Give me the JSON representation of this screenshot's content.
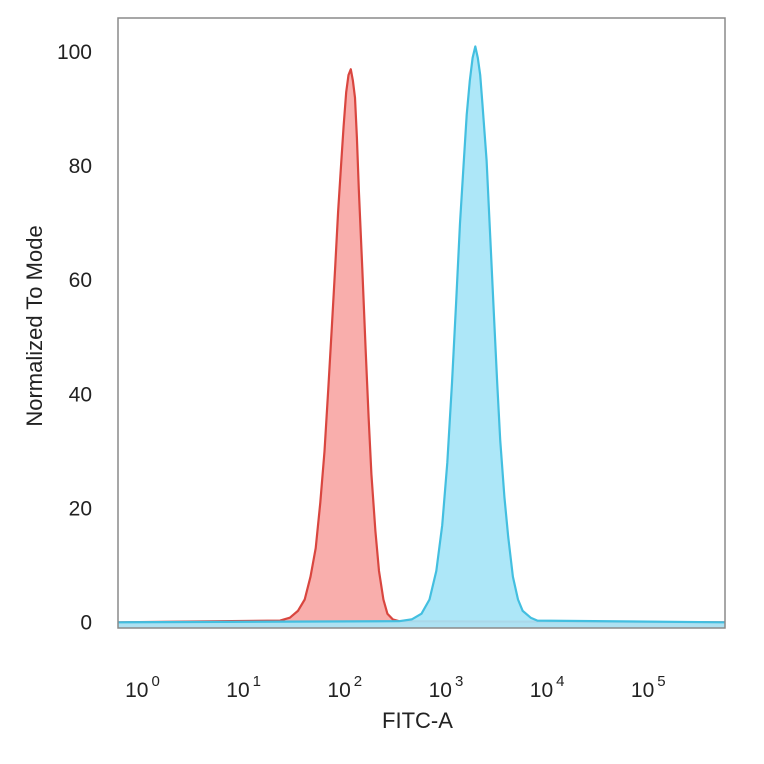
{
  "chart_data": {
    "type": "area",
    "title": "",
    "xlabel": "FITC-A",
    "ylabel": "Normalized To Mode",
    "x_scale": "log",
    "xlim": [
      0.5,
      500000
    ],
    "ylim": [
      -1,
      106
    ],
    "y_ticks": [
      {
        "value": 0,
        "label": "0"
      },
      {
        "value": 20,
        "label": "20"
      },
      {
        "value": 40,
        "label": "40"
      },
      {
        "value": 60,
        "label": "60"
      },
      {
        "value": 80,
        "label": "80"
      },
      {
        "value": 100,
        "label": "100"
      }
    ],
    "x_ticks": [
      {
        "value": 1,
        "base": "10",
        "exp": "0"
      },
      {
        "value": 10,
        "base": "10",
        "exp": "1"
      },
      {
        "value": 100,
        "base": "10",
        "exp": "2"
      },
      {
        "value": 1000,
        "base": "10",
        "exp": "3"
      },
      {
        "value": 10000,
        "base": "10",
        "exp": "4"
      },
      {
        "value": 100000,
        "base": "10",
        "exp": "5"
      }
    ],
    "grid": false,
    "legend": "none",
    "series": [
      {
        "fill": "#f9a7a5",
        "stroke": "#d9463f",
        "points": [
          [
            0.5,
            0
          ],
          [
            20,
            0.3
          ],
          [
            25,
            0.8
          ],
          [
            30,
            2
          ],
          [
            35,
            4
          ],
          [
            40,
            8
          ],
          [
            45,
            13
          ],
          [
            50,
            21
          ],
          [
            55,
            30
          ],
          [
            60,
            41
          ],
          [
            65,
            52
          ],
          [
            70,
            62
          ],
          [
            75,
            72
          ],
          [
            80,
            80
          ],
          [
            85,
            87
          ],
          [
            90,
            93
          ],
          [
            95,
            96
          ],
          [
            100,
            97
          ],
          [
            105,
            95
          ],
          [
            110,
            92
          ],
          [
            115,
            85
          ],
          [
            120,
            76
          ],
          [
            130,
            62
          ],
          [
            140,
            48
          ],
          [
            150,
            36
          ],
          [
            160,
            26
          ],
          [
            175,
            16
          ],
          [
            190,
            9
          ],
          [
            210,
            4
          ],
          [
            230,
            1.5
          ],
          [
            260,
            0.5
          ],
          [
            300,
            0.2
          ],
          [
            500000,
            0
          ]
        ]
      },
      {
        "fill": "#a6e5f7",
        "stroke": "#43bfe0",
        "points": [
          [
            0.5,
            0
          ],
          [
            300,
            0.2
          ],
          [
            400,
            0.5
          ],
          [
            500,
            1.5
          ],
          [
            600,
            4
          ],
          [
            700,
            9
          ],
          [
            800,
            17
          ],
          [
            900,
            28
          ],
          [
            1000,
            42
          ],
          [
            1100,
            56
          ],
          [
            1200,
            70
          ],
          [
            1300,
            80
          ],
          [
            1400,
            89
          ],
          [
            1500,
            95
          ],
          [
            1600,
            99
          ],
          [
            1700,
            101
          ],
          [
            1800,
            99
          ],
          [
            1900,
            96
          ],
          [
            2000,
            91
          ],
          [
            2200,
            81
          ],
          [
            2400,
            67
          ],
          [
            2600,
            54
          ],
          [
            2800,
            42
          ],
          [
            3000,
            32
          ],
          [
            3300,
            22
          ],
          [
            3600,
            15
          ],
          [
            4000,
            8
          ],
          [
            4500,
            4
          ],
          [
            5000,
            2
          ],
          [
            6000,
            0.8
          ],
          [
            7000,
            0.3
          ],
          [
            500000,
            0
          ]
        ]
      }
    ]
  }
}
